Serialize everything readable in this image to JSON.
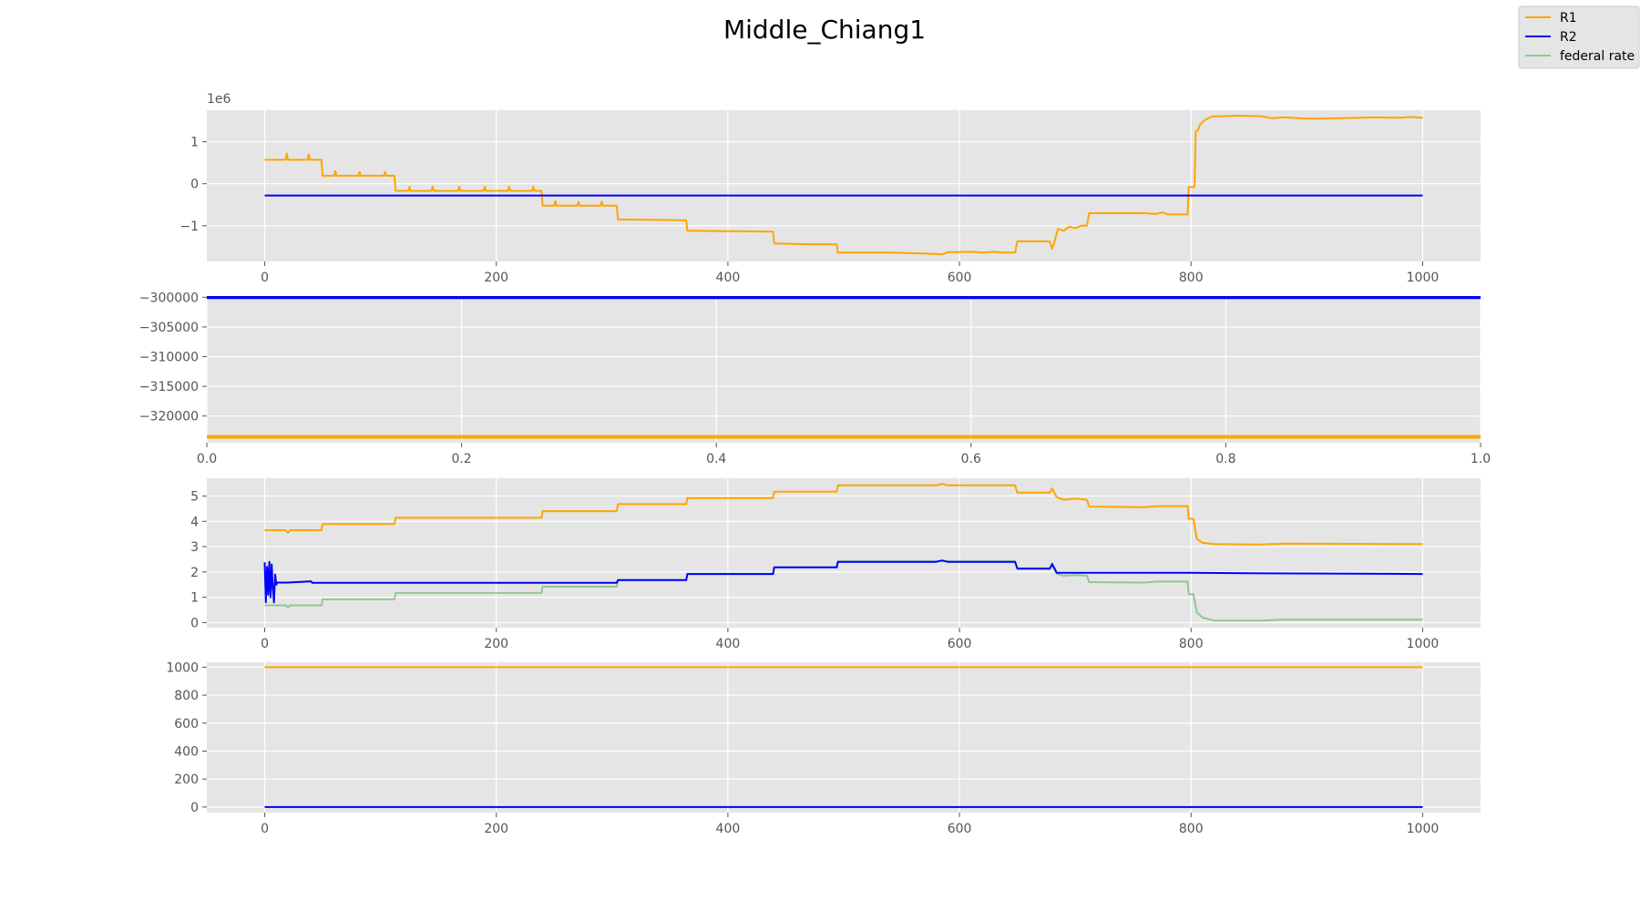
{
  "figure": {
    "title": "Middle_Chiang1"
  },
  "legend": {
    "placement": "top-right",
    "entries": [
      {
        "label": "R1",
        "color": "#ffa500"
      },
      {
        "label": "R2",
        "color": "#0000ff"
      },
      {
        "label": "federal rate",
        "color": "#90c890"
      }
    ]
  },
  "chart_data": [
    {
      "type": "line",
      "offset_label": "1e6",
      "xlim": [
        -50,
        1050
      ],
      "ylim": [
        -1.85,
        1.75
      ],
      "xticks": [
        0,
        200,
        400,
        600,
        800,
        1000
      ],
      "xtick_labels": [
        "0",
        "200",
        "400",
        "600",
        "800",
        "1000"
      ],
      "yticks": [
        1,
        0,
        -1
      ],
      "ytick_labels": [
        "1",
        "0",
        "−1"
      ],
      "series": [
        {
          "name": "R1",
          "color": "#ffa500",
          "width": 2,
          "points": [
            [
              0,
              0.57
            ],
            [
              18,
              0.57
            ],
            [
              19,
              0.72
            ],
            [
              20,
              0.57
            ],
            [
              37,
              0.57
            ],
            [
              38,
              0.7
            ],
            [
              39,
              0.57
            ],
            [
              49,
              0.57
            ],
            [
              50,
              0.19
            ],
            [
              60,
              0.19
            ],
            [
              61,
              0.3
            ],
            [
              62,
              0.19
            ],
            [
              81,
              0.19
            ],
            [
              82,
              0.28
            ],
            [
              83,
              0.19
            ],
            [
              103,
              0.19
            ],
            [
              104,
              0.28
            ],
            [
              105,
              0.19
            ],
            [
              112,
              0.19
            ],
            [
              113,
              -0.17
            ],
            [
              124,
              -0.17
            ],
            [
              125,
              -0.07
            ],
            [
              126,
              -0.17
            ],
            [
              144,
              -0.17
            ],
            [
              145,
              -0.07
            ],
            [
              146,
              -0.17
            ],
            [
              167,
              -0.17
            ],
            [
              168,
              -0.07
            ],
            [
              169,
              -0.17
            ],
            [
              189,
              -0.17
            ],
            [
              190,
              -0.07
            ],
            [
              191,
              -0.17
            ],
            [
              210,
              -0.17
            ],
            [
              211,
              -0.07
            ],
            [
              212,
              -0.17
            ],
            [
              231,
              -0.17
            ],
            [
              232,
              -0.07
            ],
            [
              233,
              -0.17
            ],
            [
              239,
              -0.17
            ],
            [
              240,
              -0.52
            ],
            [
              250,
              -0.52
            ],
            [
              251,
              -0.41
            ],
            [
              252,
              -0.52
            ],
            [
              270,
              -0.52
            ],
            [
              271,
              -0.43
            ],
            [
              272,
              -0.52
            ],
            [
              290,
              -0.52
            ],
            [
              291,
              -0.43
            ],
            [
              292,
              -0.52
            ],
            [
              304,
              -0.52
            ],
            [
              305,
              -0.85
            ],
            [
              330,
              -0.86
            ],
            [
              364,
              -0.87
            ],
            [
              365,
              -1.12
            ],
            [
              400,
              -1.13
            ],
            [
              439,
              -1.14
            ],
            [
              440,
              -1.42
            ],
            [
              470,
              -1.44
            ],
            [
              494,
              -1.44
            ],
            [
              495,
              -1.64
            ],
            [
              540,
              -1.64
            ],
            [
              580,
              -1.67
            ],
            [
              585,
              -1.68
            ],
            [
              590,
              -1.63
            ],
            [
              610,
              -1.62
            ],
            [
              620,
              -1.64
            ],
            [
              630,
              -1.62
            ],
            [
              637,
              -1.64
            ],
            [
              645,
              -1.64
            ],
            [
              648,
              -1.64
            ],
            [
              650,
              -1.37
            ],
            [
              670,
              -1.37
            ],
            [
              678,
              -1.38
            ],
            [
              680,
              -1.55
            ],
            [
              682,
              -1.38
            ],
            [
              685,
              -1.08
            ],
            [
              690,
              -1.12
            ],
            [
              695,
              -1.02
            ],
            [
              700,
              -1.06
            ],
            [
              705,
              -1.0
            ],
            [
              710,
              -1.0
            ],
            [
              712,
              -0.7
            ],
            [
              740,
              -0.7
            ],
            [
              760,
              -0.7
            ],
            [
              770,
              -0.72
            ],
            [
              775,
              -0.68
            ],
            [
              780,
              -0.73
            ],
            [
              790,
              -0.73
            ],
            [
              797,
              -0.73
            ],
            [
              798,
              -0.08
            ],
            [
              803,
              -0.08
            ],
            [
              804,
              1.25
            ],
            [
              806,
              1.28
            ],
            [
              808,
              1.42
            ],
            [
              812,
              1.52
            ],
            [
              818,
              1.6
            ],
            [
              840,
              1.62
            ],
            [
              860,
              1.61
            ],
            [
              870,
              1.56
            ],
            [
              880,
              1.58
            ],
            [
              900,
              1.55
            ],
            [
              930,
              1.56
            ],
            [
              960,
              1.58
            ],
            [
              980,
              1.57
            ],
            [
              990,
              1.59
            ],
            [
              1000,
              1.57
            ]
          ]
        },
        {
          "name": "R2",
          "color": "#0000ff",
          "width": 2,
          "points": [
            [
              0,
              -0.28
            ],
            [
              1000,
              -0.28
            ]
          ]
        }
      ]
    },
    {
      "type": "line",
      "xlim": [
        0,
        1
      ],
      "ylim": [
        -324500,
        -299800
      ],
      "xticks": [
        0,
        0.2,
        0.4,
        0.6,
        0.8,
        1.0
      ],
      "xtick_labels": [
        "0.0",
        "0.2",
        "0.4",
        "0.6",
        "0.8",
        "1.0"
      ],
      "yticks": [
        -300000,
        -305000,
        -310000,
        -315000,
        -320000
      ],
      "ytick_labels": [
        "−300000",
        "−305000",
        "−310000",
        "−315000",
        "−320000"
      ],
      "series": [
        {
          "name": "R2",
          "color": "#0000ff",
          "width": 4,
          "points": [
            [
              0,
              -300000
            ],
            [
              1,
              -300000
            ]
          ]
        },
        {
          "name": "R1",
          "color": "#ffa500",
          "width": 4,
          "points": [
            [
              0,
              -323500
            ],
            [
              1,
              -323500
            ]
          ]
        }
      ]
    },
    {
      "type": "line",
      "xlim": [
        -50,
        1050
      ],
      "ylim": [
        -0.2,
        5.7
      ],
      "xticks": [
        0,
        200,
        400,
        600,
        800,
        1000
      ],
      "xtick_labels": [
        "0",
        "200",
        "400",
        "600",
        "800",
        "1000"
      ],
      "yticks": [
        5,
        4,
        3,
        2,
        1,
        0
      ],
      "ytick_labels": [
        "5",
        "4",
        "3",
        "2",
        "1",
        "0"
      ],
      "series": [
        {
          "name": "federal rate",
          "color": "#90c890",
          "width": 2,
          "points": [
            [
              0,
              0.68
            ],
            [
              18,
              0.68
            ],
            [
              20,
              0.6
            ],
            [
              22,
              0.68
            ],
            [
              49,
              0.68
            ],
            [
              50,
              0.92
            ],
            [
              112,
              0.92
            ],
            [
              113,
              1.17
            ],
            [
              239,
              1.17
            ],
            [
              240,
              1.42
            ],
            [
              304,
              1.42
            ],
            [
              305,
              1.68
            ],
            [
              364,
              1.68
            ],
            [
              365,
              1.93
            ],
            [
              439,
              1.93
            ],
            [
              440,
              2.18
            ],
            [
              494,
              2.18
            ],
            [
              495,
              2.42
            ],
            [
              580,
              2.42
            ],
            [
              585,
              2.46
            ],
            [
              590,
              2.42
            ],
            [
              648,
              2.42
            ],
            [
              650,
              2.15
            ],
            [
              678,
              2.15
            ],
            [
              680,
              2.25
            ],
            [
              684,
              1.93
            ],
            [
              690,
              1.85
            ],
            [
              700,
              1.88
            ],
            [
              710,
              1.85
            ],
            [
              712,
              1.6
            ],
            [
              760,
              1.58
            ],
            [
              770,
              1.62
            ],
            [
              797,
              1.62
            ],
            [
              798,
              1.12
            ],
            [
              802,
              1.12
            ],
            [
              805,
              0.4
            ],
            [
              810,
              0.2
            ],
            [
              820,
              0.08
            ],
            [
              860,
              0.08
            ],
            [
              880,
              0.12
            ],
            [
              1000,
              0.12
            ]
          ]
        },
        {
          "name": "R1",
          "color": "#ffa500",
          "width": 2,
          "points": [
            [
              0,
              3.65
            ],
            [
              18,
              3.65
            ],
            [
              20,
              3.55
            ],
            [
              22,
              3.65
            ],
            [
              49,
              3.65
            ],
            [
              50,
              3.89
            ],
            [
              112,
              3.89
            ],
            [
              113,
              4.14
            ],
            [
              239,
              4.14
            ],
            [
              240,
              4.4
            ],
            [
              304,
              4.4
            ],
            [
              305,
              4.68
            ],
            [
              364,
              4.68
            ],
            [
              365,
              4.92
            ],
            [
              439,
              4.92
            ],
            [
              440,
              5.17
            ],
            [
              494,
              5.17
            ],
            [
              495,
              5.42
            ],
            [
              580,
              5.42
            ],
            [
              585,
              5.48
            ],
            [
              590,
              5.42
            ],
            [
              648,
              5.42
            ],
            [
              650,
              5.13
            ],
            [
              678,
              5.13
            ],
            [
              680,
              5.3
            ],
            [
              684,
              4.95
            ],
            [
              690,
              4.85
            ],
            [
              700,
              4.9
            ],
            [
              710,
              4.85
            ],
            [
              712,
              4.58
            ],
            [
              760,
              4.56
            ],
            [
              770,
              4.6
            ],
            [
              797,
              4.6
            ],
            [
              798,
              4.1
            ],
            [
              802,
              4.1
            ],
            [
              805,
              3.3
            ],
            [
              810,
              3.15
            ],
            [
              820,
              3.1
            ],
            [
              860,
              3.08
            ],
            [
              880,
              3.12
            ],
            [
              1000,
              3.1
            ]
          ]
        },
        {
          "name": "R2",
          "color": "#0000ff",
          "width": 2,
          "points": [
            [
              0,
              2.38
            ],
            [
              1,
              0.8
            ],
            [
              2,
              2.2
            ],
            [
              3,
              1.1
            ],
            [
              4,
              2.4
            ],
            [
              5,
              1.0
            ],
            [
              6,
              2.3
            ],
            [
              7,
              1.4
            ],
            [
              8,
              0.8
            ],
            [
              9,
              1.9
            ],
            [
              10,
              1.5
            ],
            [
              11,
              1.58
            ],
            [
              20,
              1.58
            ],
            [
              40,
              1.63
            ],
            [
              41,
              1.57
            ],
            [
              304,
              1.57
            ],
            [
              305,
              1.68
            ],
            [
              364,
              1.68
            ],
            [
              365,
              1.92
            ],
            [
              439,
              1.92
            ],
            [
              440,
              2.18
            ],
            [
              494,
              2.18
            ],
            [
              495,
              2.4
            ],
            [
              580,
              2.4
            ],
            [
              585,
              2.45
            ],
            [
              590,
              2.4
            ],
            [
              648,
              2.4
            ],
            [
              650,
              2.13
            ],
            [
              678,
              2.13
            ],
            [
              680,
              2.32
            ],
            [
              684,
              1.97
            ],
            [
              760,
              1.97
            ],
            [
              800,
              1.97
            ],
            [
              850,
              1.95
            ],
            [
              1000,
              1.92
            ]
          ]
        }
      ]
    },
    {
      "type": "line",
      "xlim": [
        -50,
        1050
      ],
      "ylim": [
        -40,
        1035
      ],
      "xticks": [
        0,
        200,
        400,
        600,
        800,
        1000
      ],
      "xtick_labels": [
        "0",
        "200",
        "400",
        "600",
        "800",
        "1000"
      ],
      "yticks": [
        1000,
        800,
        600,
        400,
        200,
        0
      ],
      "ytick_labels": [
        "1000",
        "800",
        "600",
        "400",
        "200",
        "0"
      ],
      "series": [
        {
          "name": "R1",
          "color": "#ffa500",
          "width": 2,
          "points": [
            [
              0,
              1000
            ],
            [
              1000,
              1000
            ]
          ]
        },
        {
          "name": "R2",
          "color": "#0000ff",
          "width": 2,
          "points": [
            [
              0,
              0
            ],
            [
              1000,
              0
            ]
          ]
        }
      ]
    }
  ]
}
